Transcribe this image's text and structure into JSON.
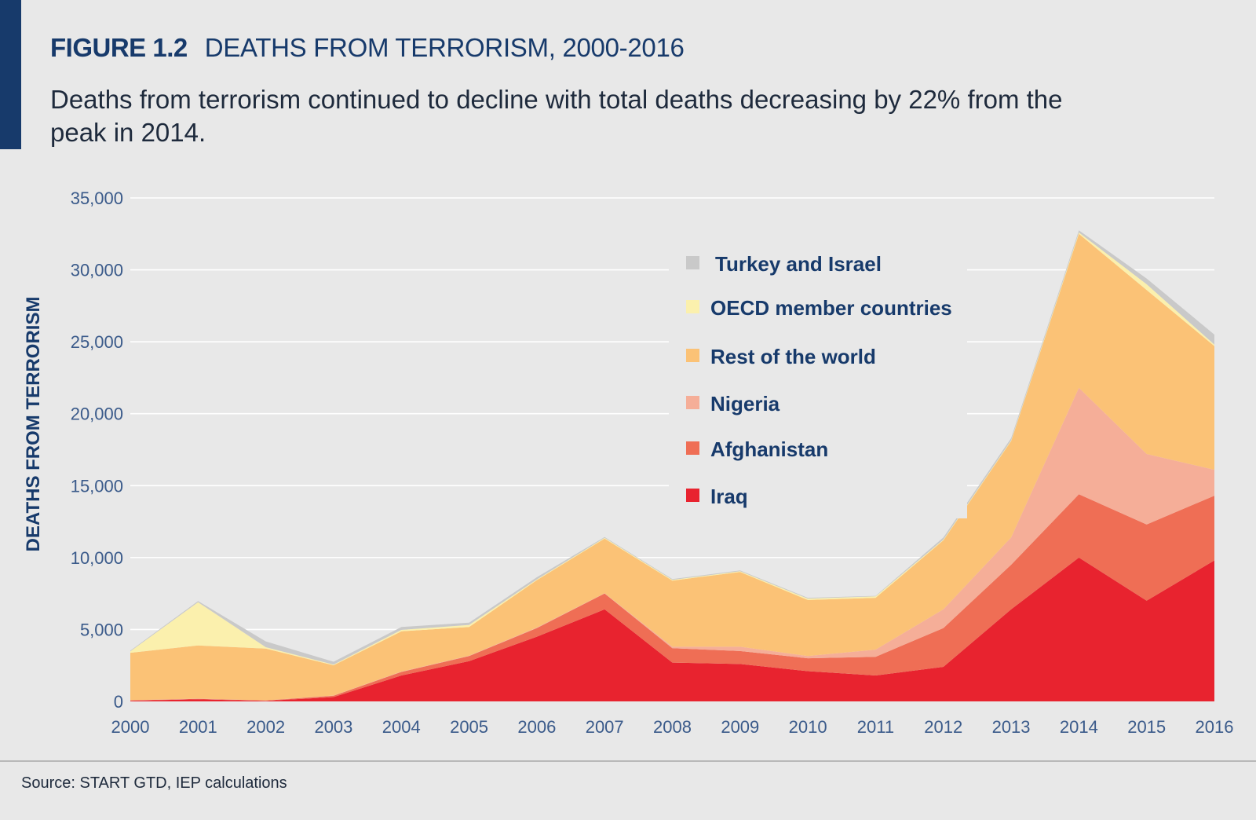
{
  "header": {
    "figure_number": "FIGURE 1.2",
    "figure_title": "DEATHS FROM TERRORISM, 2000-2016",
    "subtitle": "Deaths from terrorism continued to decline with total deaths decreasing by 22% from the peak in 2014."
  },
  "footer": {
    "source": "Source: START GTD, IEP calculations"
  },
  "chart_data": {
    "type": "area",
    "stacked": true,
    "ylabel": "DEATHS FROM TERRORISM",
    "xlabel": "",
    "ylim": [
      0,
      35000
    ],
    "yticks": [
      0,
      5000,
      10000,
      15000,
      20000,
      25000,
      30000,
      35000
    ],
    "ytick_labels": [
      "0",
      "5,000",
      "10,000",
      "15,000",
      "20,000",
      "25,000",
      "30,000",
      "35,000"
    ],
    "grid": "horizontal",
    "legend_position": "top-right",
    "x": [
      "2000",
      "2001",
      "2002",
      "2003",
      "2004",
      "2005",
      "2006",
      "2007",
      "2008",
      "2009",
      "2010",
      "2011",
      "2012",
      "2013",
      "2014",
      "2015",
      "2016"
    ],
    "series": [
      {
        "name": "Iraq",
        "color": "#e8232f",
        "values": [
          50,
          150,
          40,
          300,
          1800,
          2800,
          4500,
          6400,
          2700,
          2600,
          2100,
          1800,
          2400,
          6400,
          10000,
          7000,
          9800
        ]
      },
      {
        "name": "Afghanistan",
        "color": "#ef6e55",
        "values": [
          20,
          30,
          20,
          100,
          250,
          350,
          600,
          1100,
          1000,
          900,
          900,
          1300,
          2700,
          3100,
          4400,
          5300,
          4500
        ]
      },
      {
        "name": "Nigeria",
        "color": "#f5ae98",
        "values": [
          10,
          10,
          10,
          10,
          20,
          20,
          30,
          20,
          100,
          300,
          150,
          500,
          1300,
          1900,
          7400,
          4900,
          1800
        ]
      },
      {
        "name": "Rest of the world",
        "color": "#fbc276",
        "values": [
          3300,
          3700,
          3600,
          2100,
          2800,
          2000,
          3300,
          3800,
          4600,
          5200,
          3900,
          3600,
          4800,
          6700,
          10700,
          11400,
          8600
        ]
      },
      {
        "name": "OECD member countries",
        "color": "#fbf0ad",
        "values": [
          100,
          3000,
          100,
          50,
          100,
          150,
          50,
          50,
          50,
          50,
          100,
          100,
          50,
          50,
          100,
          400,
          100
        ]
      },
      {
        "name": "Turkey and Israel",
        "color": "#c9c9c9",
        "values": [
          50,
          80,
          400,
          200,
          200,
          150,
          150,
          60,
          50,
          50,
          50,
          40,
          150,
          150,
          150,
          400,
          700
        ]
      }
    ],
    "legend_order": [
      "Turkey and Israel",
      "OECD member countries",
      "Rest of the world",
      "Nigeria",
      "Afghanistan",
      "Iraq"
    ]
  }
}
